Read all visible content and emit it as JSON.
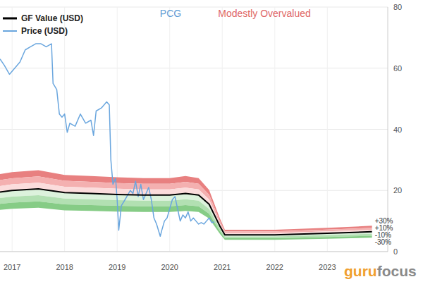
{
  "chart_data": {
    "type": "line",
    "title": "PCG",
    "subtitle": "Modestly Overvalued",
    "watermark": [
      "guru",
      "focus"
    ],
    "xlim": [
      2016.77,
      2024.15
    ],
    "xticks": [
      2017,
      2018,
      2019,
      2020,
      2021,
      2022,
      2023
    ],
    "ylim": [
      0,
      80
    ],
    "yticks": [
      0,
      20,
      40,
      60,
      80
    ],
    "grid": true,
    "legend": "top-left",
    "series": [
      {
        "name": "GF Value (USD)",
        "color": "#000000",
        "line_style": "solid",
        "x": [
          2016.77,
          2017.0,
          2017.5,
          2018.0,
          2018.5,
          2019.0,
          2019.5,
          2020.0,
          2020.3,
          2020.55,
          2020.75,
          2020.95,
          2021.05,
          2022.0,
          2023.0,
          2023.85
        ],
        "values": [
          19.5,
          20.0,
          20.5,
          19.3,
          19.0,
          18.7,
          18.5,
          18.5,
          19.0,
          18.5,
          15.5,
          8.5,
          5.5,
          5.5,
          6.0,
          6.5
        ]
      },
      {
        "name": "Price (USD)",
        "color": "#6aa6de",
        "line_style": "solid",
        "x": [
          2016.77,
          2016.85,
          2016.95,
          2017.05,
          2017.15,
          2017.25,
          2017.35,
          2017.45,
          2017.55,
          2017.65,
          2017.75,
          2017.78,
          2017.85,
          2017.9,
          2017.95,
          2018.0,
          2018.05,
          2018.1,
          2018.2,
          2018.3,
          2018.4,
          2018.5,
          2018.55,
          2018.6,
          2018.7,
          2018.8,
          2018.85,
          2018.88,
          2018.92,
          2018.97,
          2019.0,
          2019.03,
          2019.08,
          2019.15,
          2019.25,
          2019.3,
          2019.35,
          2019.4,
          2019.45,
          2019.5,
          2019.6,
          2019.65,
          2019.7,
          2019.75,
          2019.82,
          2019.85,
          2019.9,
          2019.95,
          2020.0,
          2020.05,
          2020.1,
          2020.15,
          2020.2,
          2020.25,
          2020.3,
          2020.35,
          2020.4,
          2020.45,
          2020.5,
          2020.55,
          2020.6,
          2020.65,
          2020.7,
          2020.75,
          2020.8,
          2020.85
        ],
        "values": [
          63,
          61,
          58,
          60,
          62,
          66,
          67,
          68,
          68,
          67,
          68,
          55,
          53,
          45,
          44,
          45,
          39,
          42,
          41,
          45,
          42,
          43,
          38,
          46,
          47,
          49,
          48,
          30,
          22,
          24,
          17,
          7,
          15,
          17,
          20,
          19,
          23,
          18,
          22,
          17,
          21,
          17,
          11,
          9,
          5,
          7,
          10,
          11,
          14,
          17,
          18,
          14,
          10,
          12,
          11,
          13,
          10,
          11,
          10,
          9,
          9.5,
          9,
          10,
          11,
          9.5,
          9.7
        ]
      }
    ],
    "bands": [
      {
        "from": 20,
        "to": 30,
        "color": "#e88080"
      },
      {
        "from": 10,
        "to": 20,
        "color": "#f4b0b0"
      },
      {
        "from": 0,
        "to": 10,
        "color": "#fbdcdc"
      },
      {
        "from": -10,
        "to": 0,
        "color": "#dcf2dc"
      },
      {
        "from": -20,
        "to": -10,
        "color": "#b2e0b2"
      },
      {
        "from": -30,
        "to": -20,
        "color": "#86cc86"
      }
    ],
    "band_labels": [
      {
        "value": 30,
        "label": "+30%"
      },
      {
        "value": 10,
        "label": "+10%"
      },
      {
        "value": -10,
        "label": "-10%"
      },
      {
        "value": -30,
        "label": "-30%"
      }
    ]
  }
}
